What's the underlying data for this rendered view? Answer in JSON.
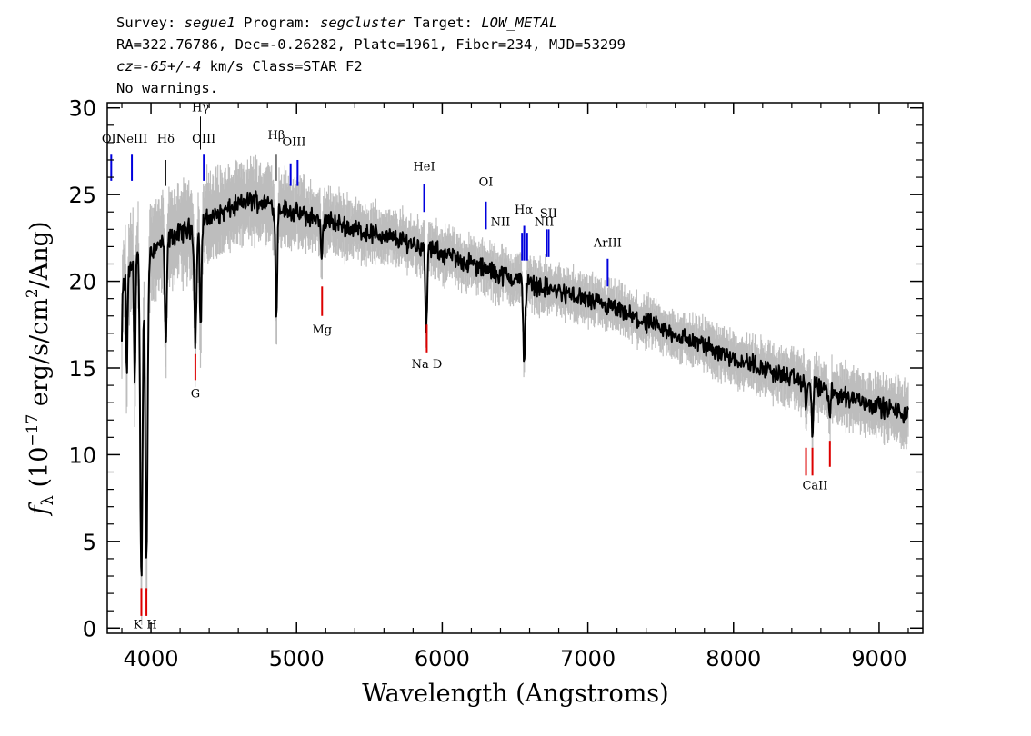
{
  "header": {
    "line1": [
      {
        "text": "Survey: ",
        "italic": false
      },
      {
        "text": "segue1",
        "italic": true
      },
      {
        "text": " Program: ",
        "italic": false
      },
      {
        "text": "segcluster",
        "italic": true
      },
      {
        "text": " Target: ",
        "italic": false
      },
      {
        "text": "LOW_METAL",
        "italic": true
      }
    ],
    "line2": "RA=322.76786, Dec=-0.26282, Plate=1961, Fiber=234, MJD=53299",
    "line3": [
      {
        "text": "cz=-65+/-4",
        "italic": true
      },
      {
        "text": " km/s Class=STAR F2",
        "italic": false
      }
    ],
    "line4": "No warnings."
  },
  "chart_data": {
    "type": "line",
    "xlabel": "Wavelength (Angstroms)",
    "ylabel": "f_λ (10^-17 erg/s/cm²/Ang)",
    "xlim": [
      3700,
      9300
    ],
    "ylim": [
      -0.3,
      30.3
    ],
    "xticks": [
      4000,
      5000,
      6000,
      7000,
      8000,
      9000
    ],
    "yticks": [
      0,
      5,
      10,
      15,
      20,
      25,
      30
    ],
    "colors": {
      "flux": "#000000",
      "error_band": "#bdbdbd",
      "emission": "#0000dd",
      "absorption": "#dd0000",
      "balmer": "#000000"
    },
    "flux_continuum": {
      "x": [
        3800,
        3900,
        4000,
        4100,
        4200,
        4300,
        4400,
        4500,
        4600,
        4700,
        4800,
        4900,
        5000,
        5200,
        5400,
        5600,
        5800,
        6000,
        6200,
        6400,
        6600,
        6800,
        7000,
        7200,
        7400,
        7600,
        7800,
        8000,
        8200,
        8400,
        8600,
        8800,
        9000,
        9200
      ],
      "y": [
        19.5,
        21.5,
        21.8,
        22.3,
        22.8,
        23.2,
        23.6,
        24.0,
        24.4,
        24.7,
        24.5,
        24.2,
        23.9,
        23.5,
        23.0,
        22.6,
        22.2,
        21.6,
        21.0,
        20.4,
        19.9,
        19.4,
        18.9,
        18.3,
        17.6,
        16.9,
        16.3,
        15.6,
        15.0,
        14.4,
        13.8,
        13.3,
        12.8,
        12.3
      ]
    },
    "absorption_features": [
      {
        "x": 3797,
        "depth": 4.0,
        "width": 4
      },
      {
        "x": 3835,
        "depth": 6.0,
        "width": 4
      },
      {
        "x": 3889,
        "depth": 7.0,
        "width": 5
      },
      {
        "x": 3934,
        "depth": 19.0,
        "width": 8
      },
      {
        "x": 3969,
        "depth": 18.0,
        "width": 8
      },
      {
        "x": 4102,
        "depth": 6.5,
        "width": 6
      },
      {
        "x": 4305,
        "depth": 6.5,
        "width": 8
      },
      {
        "x": 4341,
        "depth": 6.0,
        "width": 6
      },
      {
        "x": 4861,
        "depth": 6.5,
        "width": 6
      },
      {
        "x": 5172,
        "depth": 2.5,
        "width": 6
      },
      {
        "x": 5890,
        "depth": 5.0,
        "width": 6
      },
      {
        "x": 6563,
        "depth": 4.5,
        "width": 7
      },
      {
        "x": 8498,
        "depth": 1.5,
        "width": 5
      },
      {
        "x": 8542,
        "depth": 2.8,
        "width": 5
      },
      {
        "x": 8662,
        "depth": 1.8,
        "width": 5
      }
    ],
    "error_band_halfwidth": [
      {
        "x": 3800,
        "e": 2.5
      },
      {
        "x": 5500,
        "e": 1.2
      },
      {
        "x": 7500,
        "e": 1.0
      },
      {
        "x": 9200,
        "e": 1.4
      }
    ],
    "line_markers": [
      {
        "label": "OII",
        "x": 3727,
        "type": "emission",
        "y_top": 27.3,
        "y_bottom": 25.8,
        "label_y": 28.0
      },
      {
        "label": "NeIII",
        "x": 3869,
        "type": "emission",
        "y_top": 27.3,
        "y_bottom": 25.8,
        "label_y": 28.0
      },
      {
        "label": "Hδ",
        "x": 4102,
        "type": "balmer",
        "y_top": 27.0,
        "y_bottom": 25.5,
        "label_y": 28.0
      },
      {
        "label": "Hγ",
        "x": 4340,
        "type": "balmer",
        "y_top": 29.5,
        "y_bottom": 27.6,
        "label_y": 29.8
      },
      {
        "label": "OIII",
        "x": 4363,
        "type": "emission",
        "y_top": 27.3,
        "y_bottom": 25.8,
        "label_y": 28.0
      },
      {
        "label": "Hβ",
        "x": 4861,
        "type": "balmer",
        "y_top": 27.3,
        "y_bottom": 25.8,
        "label_y": 28.2
      },
      {
        "label": "OIII",
        "x": 4959,
        "type": "emission",
        "y_top": 26.8,
        "y_bottom": 25.5,
        "label_y": 27.8
      },
      {
        "label": "OIII",
        "x": 5007,
        "type": "emission",
        "y_top": 27.0,
        "y_bottom": 25.5,
        "label_y": 27.8
      },
      {
        "label": "HeI",
        "x": 5876,
        "type": "emission",
        "y_top": 25.6,
        "y_bottom": 24.0,
        "label_y": 26.4
      },
      {
        "label": "OI",
        "x": 6300,
        "type": "emission",
        "y_top": 24.6,
        "y_bottom": 23.0,
        "label_y": 25.5
      },
      {
        "label": "NII",
        "x": 6548,
        "type": "emission",
        "y_top": 22.8,
        "y_bottom": 21.2,
        "label_y": 23.2
      },
      {
        "label": "Hα",
        "x": 6563,
        "type": "emission",
        "y_top": 23.2,
        "y_bottom": 21.2,
        "label_y": 23.9
      },
      {
        "label": "NII",
        "x": 6583,
        "type": "emission",
        "y_top": 22.8,
        "y_bottom": 21.2,
        "label_y": 23.2
      },
      {
        "label": "SII",
        "x": 6716,
        "type": "emission",
        "y_top": 23.0,
        "y_bottom": 21.4,
        "label_y": 23.7
      },
      {
        "label": "SII",
        "x": 6731,
        "type": "emission",
        "y_top": 23.0,
        "y_bottom": 21.4,
        "label_y": 23.7
      },
      {
        "label": "ArIII",
        "x": 7136,
        "type": "emission",
        "y_top": 21.3,
        "y_bottom": 19.7,
        "label_y": 22.0
      },
      {
        "label": "K",
        "x": 3934,
        "type": "absorption",
        "y_top": 2.3,
        "y_bottom": 0.7,
        "label_y": 0.0
      },
      {
        "label": "H",
        "x": 3969,
        "type": "absorption",
        "y_top": 2.3,
        "y_bottom": 0.7,
        "label_y": 0.0
      },
      {
        "label": "G",
        "x": 4305,
        "type": "absorption",
        "y_top": 15.8,
        "y_bottom": 14.3,
        "label_y": 13.3
      },
      {
        "label": "Mg",
        "x": 5175,
        "type": "absorption",
        "y_top": 19.7,
        "y_bottom": 18.0,
        "label_y": 17.0
      },
      {
        "label": "Na D",
        "x": 5894,
        "type": "absorption",
        "y_top": 17.5,
        "y_bottom": 15.9,
        "label_y": 15.0
      },
      {
        "label": "",
        "x": 8498,
        "type": "absorption",
        "y_top": 10.4,
        "y_bottom": 8.8,
        "label_y": 8.0
      },
      {
        "label": "CaII",
        "x": 8542,
        "type": "absorption",
        "y_top": 10.4,
        "y_bottom": 8.8,
        "label_y": 8.0
      },
      {
        "label": "",
        "x": 8662,
        "type": "absorption",
        "y_top": 10.8,
        "y_bottom": 9.3,
        "label_y": 8.0
      }
    ]
  }
}
